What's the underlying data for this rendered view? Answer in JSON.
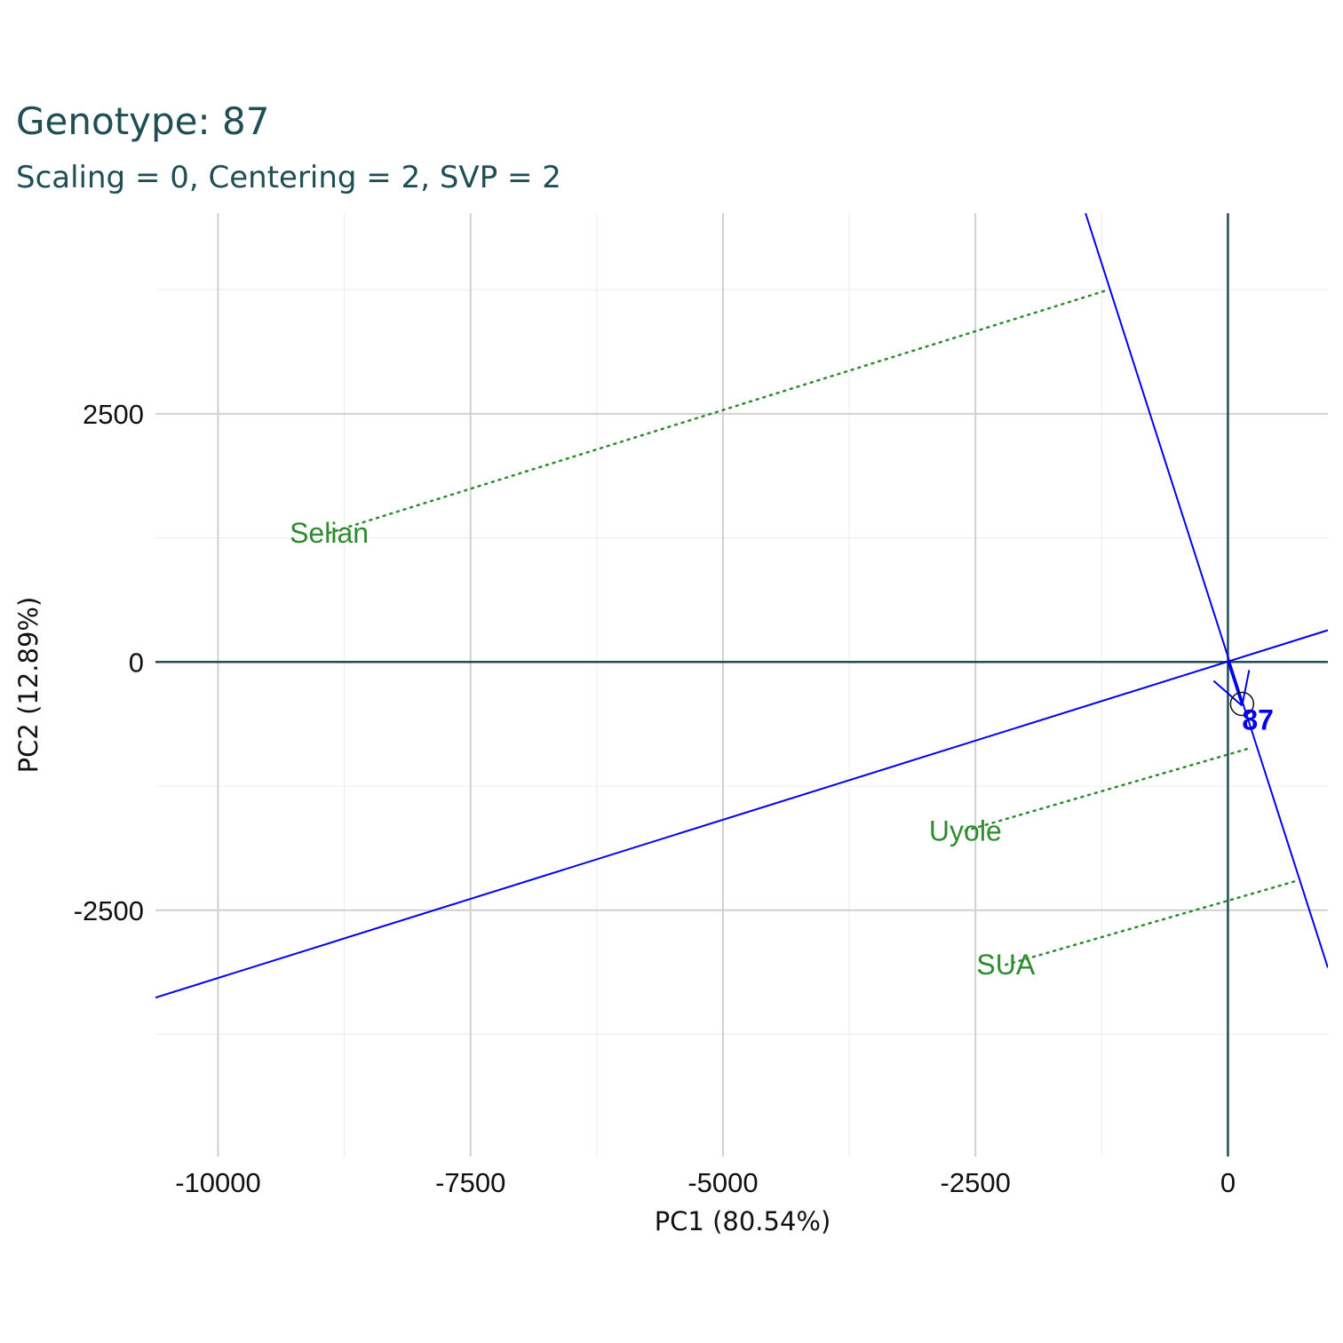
{
  "chart_data": {
    "type": "scatter",
    "title": "Genotype: 87",
    "subtitle": "Scaling = 0, Centering = 2, SVP = 2",
    "xlabel": "PC1 (80.54%)",
    "ylabel": "PC2 (12.89%)",
    "xlim": [
      -10620,
      990
    ],
    "ylim": [
      -4980,
      4520
    ],
    "x_ticks": [
      -10000,
      -7500,
      -5000,
      -2500,
      0
    ],
    "y_ticks": [
      -2500,
      0,
      2500
    ],
    "x_tick_labels": [
      "-10000",
      "-7500",
      "-5000",
      "-2500",
      "0"
    ],
    "y_tick_labels": [
      "-2500",
      "0",
      "2500"
    ],
    "grid": true,
    "genotype": {
      "name": "87",
      "x": 140,
      "y": -440
    },
    "environments": [
      {
        "name": "Selian",
        "x": -8900,
        "y": 1300
      },
      {
        "name": "Uyole",
        "x": -2600,
        "y": -1700
      },
      {
        "name": "SUA",
        "x": -2200,
        "y": -3050
      }
    ],
    "projections": [
      {
        "from": [
          -8900,
          1300
        ],
        "to": [
          -1210,
          3740
        ]
      },
      {
        "from": [
          -2600,
          -1700
        ],
        "to": [
          210,
          -870
        ]
      },
      {
        "from": [
          -2200,
          -3050
        ],
        "to": [
          660,
          -2210
        ]
      }
    ],
    "lines": [
      {
        "from": [
          -10620,
          -3380
        ],
        "to": [
          990,
          320
        ]
      },
      {
        "from": [
          -1410,
          4520
        ],
        "to": [
          990,
          -3080
        ]
      }
    ],
    "colors": {
      "title": "#1f4e55",
      "axis_lines": "#1f4e55",
      "grid_major": "#d0d0d0",
      "grid_minor": "#ececec",
      "biplot_lines": "#0000ee",
      "environment": "#2e8b2e",
      "genotype": "#0000ee"
    }
  }
}
